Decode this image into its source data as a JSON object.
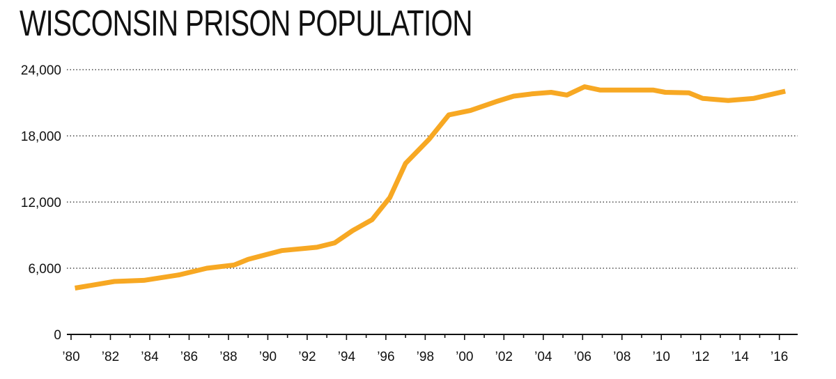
{
  "chart_data": {
    "type": "line",
    "title": "WISCONSIN PRISON POPULATION",
    "xlabel": "",
    "ylabel": "",
    "ylim": [
      0,
      24000
    ],
    "xlim": [
      1980,
      2016.4
    ],
    "grid": true,
    "y_ticks": [
      {
        "value": 0,
        "label": "0"
      },
      {
        "value": 6000,
        "label": "6,000"
      },
      {
        "value": 12000,
        "label": "12,000"
      },
      {
        "value": 18000,
        "label": "18,000"
      },
      {
        "value": 24000,
        "label": "24,000"
      }
    ],
    "x_ticks": [
      {
        "value": 1980,
        "label": "’80"
      },
      {
        "value": 1982,
        "label": "’82"
      },
      {
        "value": 1984,
        "label": "’84"
      },
      {
        "value": 1986,
        "label": "’86"
      },
      {
        "value": 1988,
        "label": "’88"
      },
      {
        "value": 1990,
        "label": "’90"
      },
      {
        "value": 1992,
        "label": "’92"
      },
      {
        "value": 1994,
        "label": "’94"
      },
      {
        "value": 1996,
        "label": "’96"
      },
      {
        "value": 1998,
        "label": "’98"
      },
      {
        "value": 2000,
        "label": "’00"
      },
      {
        "value": 2002,
        "label": "’02"
      },
      {
        "value": 2004,
        "label": "’04"
      },
      {
        "value": 2006,
        "label": "’06"
      },
      {
        "value": 2008,
        "label": "’08"
      },
      {
        "value": 2010,
        "label": "’10"
      },
      {
        "value": 2012,
        "label": "’12"
      },
      {
        "value": 2014,
        "label": "’14"
      },
      {
        "value": 2016,
        "label": "’16"
      }
    ],
    "series": [
      {
        "name": "Wisconsin prison population",
        "color": "#F7A823",
        "x": [
          1980.2,
          1982.2,
          1983.7,
          1985.5,
          1986.9,
          1988.3,
          1989.0,
          1990.7,
          1992.5,
          1993.4,
          1994.3,
          1995.3,
          1996.2,
          1997.0,
          1998.2,
          1999.2,
          2000.3,
          2001.6,
          2002.5,
          2003.4,
          2004.4,
          2005.2,
          2006.1,
          2006.9,
          2008.3,
          2009.6,
          2010.2,
          2011.4,
          2012.1,
          2013.4,
          2014.7,
          2016.3
        ],
        "values": [
          4200,
          4800,
          4900,
          5400,
          6000,
          6300,
          6800,
          7600,
          7900,
          8300,
          9400,
          10400,
          12400,
          15500,
          17700,
          19900,
          20300,
          21100,
          21600,
          21800,
          21950,
          21700,
          22450,
          22150,
          22150,
          22150,
          21950,
          21900,
          21400,
          21200,
          21400,
          22050
        ]
      }
    ]
  }
}
